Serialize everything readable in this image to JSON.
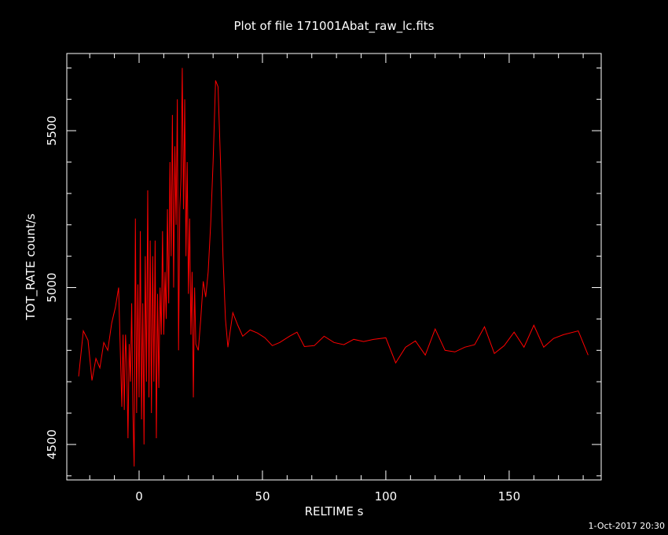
{
  "chart_data": {
    "type": "line",
    "title": "Plot of file 171001Abat_raw_lc.fits",
    "xlabel": "RELTIME  s",
    "ylabel": "TOT_RATE  count/s",
    "timestamp": "1-Oct-2017 20:30",
    "xlim": [
      -29.3,
      187.3
    ],
    "ylim": [
      4387,
      5746
    ],
    "xticks": [
      0,
      50,
      100,
      150
    ],
    "yticks": [
      4500,
      5000,
      5500
    ],
    "xticks_minor": [
      -20,
      -10,
      10,
      20,
      30,
      40,
      60,
      70,
      80,
      90,
      110,
      120,
      130,
      140,
      160,
      170,
      180
    ],
    "yticks_minor": [
      4400,
      4600,
      4700,
      4800,
      4900,
      5100,
      5200,
      5300,
      5400,
      5600,
      5700
    ],
    "series": [
      {
        "color": "#ff0000",
        "x": [
          -24.5,
          -22.6,
          -20.7,
          -19.1,
          -17.5,
          -15.9,
          -14.3,
          -12.7,
          -11.1,
          -9.6,
          -8.3,
          -7,
          -6.5,
          -6,
          -5.5,
          -5,
          -4.5,
          -4,
          -3.5,
          -3,
          -2.5,
          -2,
          -1.5,
          -1,
          -0.5,
          0,
          0.5,
          1,
          1.5,
          2,
          2.5,
          3,
          3.5,
          4,
          4.5,
          5,
          5.5,
          6,
          6.5,
          7,
          7.5,
          8,
          8.5,
          9,
          9.5,
          10,
          10.5,
          11,
          11.5,
          12,
          12.5,
          13,
          13.5,
          14,
          14.5,
          15,
          15.5,
          16,
          16.5,
          17,
          17.5,
          18,
          18.5,
          19,
          19.5,
          20,
          20.5,
          21,
          21.5,
          22,
          22.5,
          23,
          24,
          25,
          26,
          27,
          28,
          29,
          30,
          31,
          32,
          33,
          34,
          35,
          36,
          38,
          40,
          42,
          45,
          48,
          51,
          54,
          57,
          61,
          64,
          67,
          71,
          75,
          79,
          83,
          87,
          91,
          95,
          100,
          104,
          108,
          112,
          116,
          120,
          124,
          128,
          132,
          136,
          140,
          144,
          148,
          152,
          156,
          160,
          164,
          168,
          172,
          178,
          182
        ],
        "values": [
          4717,
          4862,
          4832,
          4704,
          4774,
          4744,
          4825,
          4800,
          4887,
          4937,
          5000,
          4620,
          4850,
          4610,
          4850,
          4760,
          4520,
          4820,
          4700,
          4950,
          4600,
          4430,
          5220,
          4600,
          5010,
          4650,
          5180,
          4580,
          4950,
          4500,
          5100,
          4700,
          5310,
          4650,
          5150,
          4600,
          5100,
          4700,
          5150,
          4520,
          4980,
          4680,
          5000,
          4850,
          5180,
          4850,
          5050,
          4900,
          5250,
          4950,
          5400,
          5100,
          5550,
          5000,
          5450,
          5200,
          5600,
          4800,
          5250,
          5350,
          5700,
          5250,
          5600,
          5100,
          5400,
          4980,
          5220,
          4850,
          5050,
          4650,
          5000,
          4820,
          4800,
          4900,
          5020,
          4970,
          5050,
          5200,
          5400,
          5660,
          5640,
          5400,
          5100,
          4900,
          4810,
          4920,
          4880,
          4845,
          4865,
          4855,
          4840,
          4815,
          4825,
          4845,
          4858,
          4812,
          4815,
          4845,
          4825,
          4818,
          4835,
          4828,
          4835,
          4840,
          4760,
          4810,
          4830,
          4785,
          4868,
          4800,
          4795,
          4810,
          4818,
          4875,
          4790,
          4815,
          4858,
          4810,
          4880,
          4810,
          4838,
          4850,
          4862,
          4785
        ]
      }
    ]
  }
}
